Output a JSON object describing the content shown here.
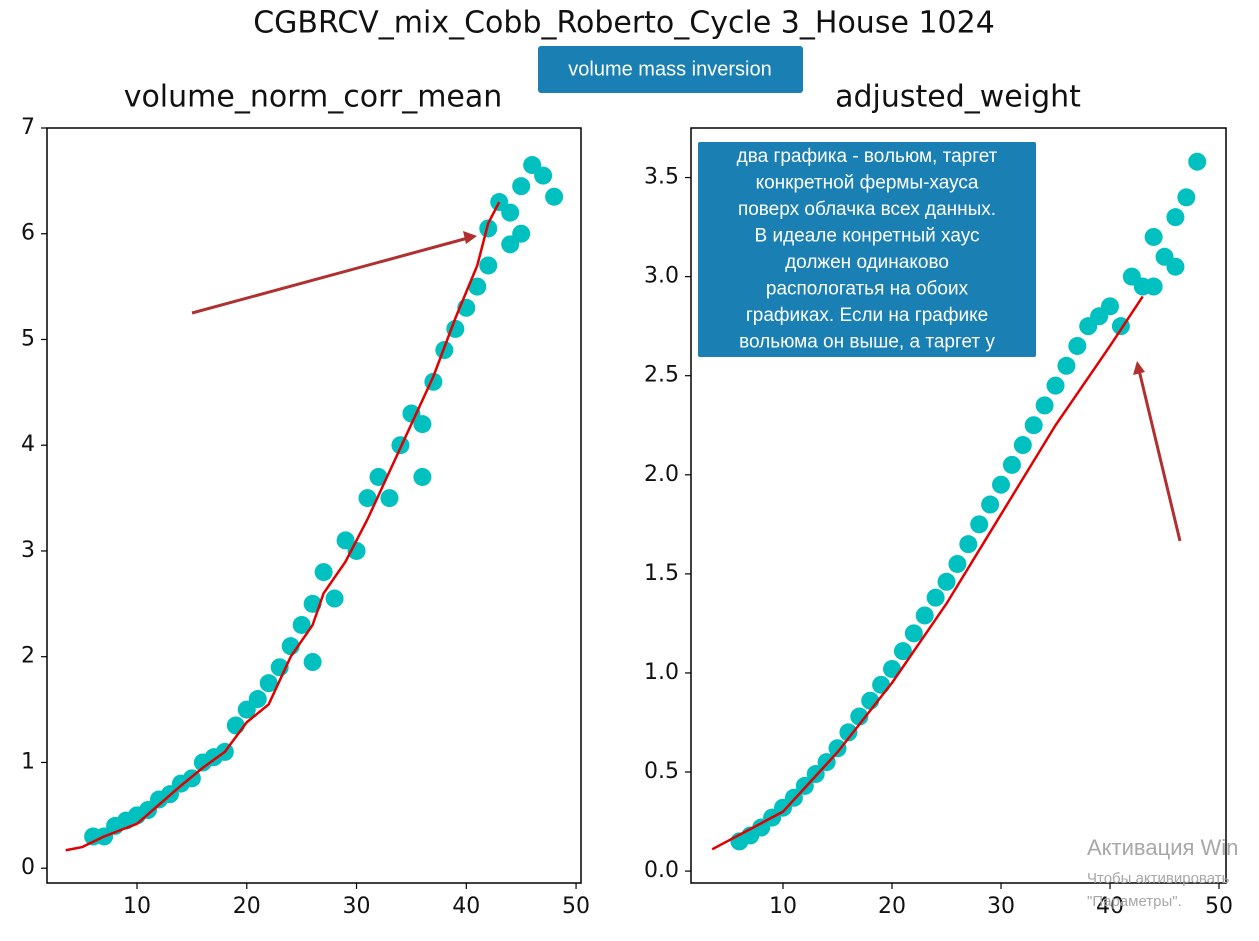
{
  "title": "CGBRCV_mix_Cobb_Roberto_Cycle 3_House 1024",
  "badge": "volume mass inversion",
  "note": [
    "два графика - вольюм, таргет",
    "конкретной фермы-хауса",
    "поверх облачка всех данных.",
    "В идеале конретный хаус",
    "должен одинаково",
    "распологатья на обоих",
    "графиках. Если на графике",
    "вольюма он выше, а таргет у"
  ],
  "watermark": [
    "Активация Win",
    "Чтобы активировать",
    "\"Параметры\"."
  ],
  "chart_data": [
    {
      "type": "scatter",
      "title": "volume_norm_corr_mean",
      "xlim": [
        1.8,
        50.45
      ],
      "ylim": [
        -0.14,
        7
      ],
      "xticks": [
        10,
        20,
        30,
        40,
        50
      ],
      "yticks": [
        0,
        1,
        2,
        3,
        4,
        5,
        6,
        7
      ],
      "series": [
        {
          "color": "#00c0c0",
          "x": [
            6,
            7,
            8,
            9,
            10,
            11,
            12,
            13,
            14,
            15,
            16,
            17,
            18,
            19,
            20,
            21,
            22,
            23,
            24,
            25,
            26,
            26,
            27,
            28,
            29,
            30,
            31,
            32,
            33,
            34,
            35,
            36,
            36,
            37,
            38,
            39,
            40,
            41,
            42,
            42,
            43,
            44,
            44,
            45,
            45,
            46,
            47,
            48
          ],
          "values": [
            0.3,
            0.3,
            0.4,
            0.45,
            0.5,
            0.55,
            0.65,
            0.7,
            0.8,
            0.85,
            1.0,
            1.05,
            1.1,
            1.35,
            1.5,
            1.6,
            1.75,
            1.9,
            2.1,
            2.3,
            1.95,
            2.5,
            2.8,
            2.55,
            3.1,
            3.0,
            3.5,
            3.7,
            3.5,
            4.0,
            4.3,
            3.7,
            4.2,
            4.6,
            4.9,
            5.1,
            5.3,
            5.5,
            6.05,
            5.7,
            6.3,
            6.2,
            5.9,
            6.45,
            6.0,
            6.65,
            6.55,
            6.35
          ]
        },
        {
          "type": "line",
          "color": "#e00000",
          "x": [
            3.5,
            5,
            7,
            9,
            10,
            12,
            14,
            16,
            18,
            20,
            22,
            24,
            26,
            27,
            29,
            31,
            33,
            35,
            37,
            39,
            40,
            41,
            42,
            43
          ],
          "values": [
            0.17,
            0.2,
            0.3,
            0.38,
            0.42,
            0.6,
            0.78,
            0.95,
            1.1,
            1.38,
            1.55,
            2.0,
            2.3,
            2.6,
            2.9,
            3.3,
            3.75,
            4.2,
            4.65,
            5.2,
            5.45,
            5.7,
            6.1,
            6.3
          ]
        }
      ]
    },
    {
      "type": "scatter",
      "title": "adjusted_weight",
      "xlim": [
        1.56,
        50.64
      ],
      "ylim": [
        -0.06,
        3.75
      ],
      "xticks": [
        10,
        20,
        30,
        40,
        50
      ],
      "yticks": [
        {
          "value": 0,
          "label": "0.0"
        },
        0.5,
        {
          "value": 1,
          "label": "1.0"
        },
        1.5,
        {
          "value": 2,
          "label": "2.0"
        },
        2.5,
        {
          "value": 3,
          "label": "3.0"
        },
        3.5
      ],
      "series": [
        {
          "color": "#00c0c0",
          "x": [
            6,
            7,
            8,
            9,
            10,
            11,
            12,
            13,
            14,
            15,
            16,
            17,
            18,
            19,
            20,
            21,
            22,
            23,
            24,
            25,
            26,
            27,
            28,
            29,
            30,
            31,
            32,
            33,
            34,
            35,
            36,
            37,
            38,
            39,
            40,
            41,
            42,
            43,
            44,
            44,
            45,
            46,
            46,
            47,
            48
          ],
          "values": [
            0.15,
            0.18,
            0.22,
            0.27,
            0.32,
            0.37,
            0.43,
            0.49,
            0.55,
            0.62,
            0.7,
            0.78,
            0.86,
            0.94,
            1.02,
            1.11,
            1.2,
            1.29,
            1.38,
            1.46,
            1.55,
            1.65,
            1.75,
            1.85,
            1.95,
            2.05,
            2.15,
            2.25,
            2.35,
            2.45,
            2.55,
            2.65,
            2.75,
            2.8,
            2.85,
            2.75,
            3.0,
            2.95,
            3.2,
            2.95,
            3.1,
            3.3,
            3.05,
            3.4,
            3.58
          ]
        },
        {
          "type": "line",
          "color": "#e00000",
          "x": [
            3.5,
            10,
            15,
            20,
            25,
            30,
            35,
            40,
            43
          ],
          "values": [
            0.11,
            0.3,
            0.6,
            0.95,
            1.35,
            1.8,
            2.25,
            2.65,
            2.9
          ]
        }
      ]
    }
  ]
}
